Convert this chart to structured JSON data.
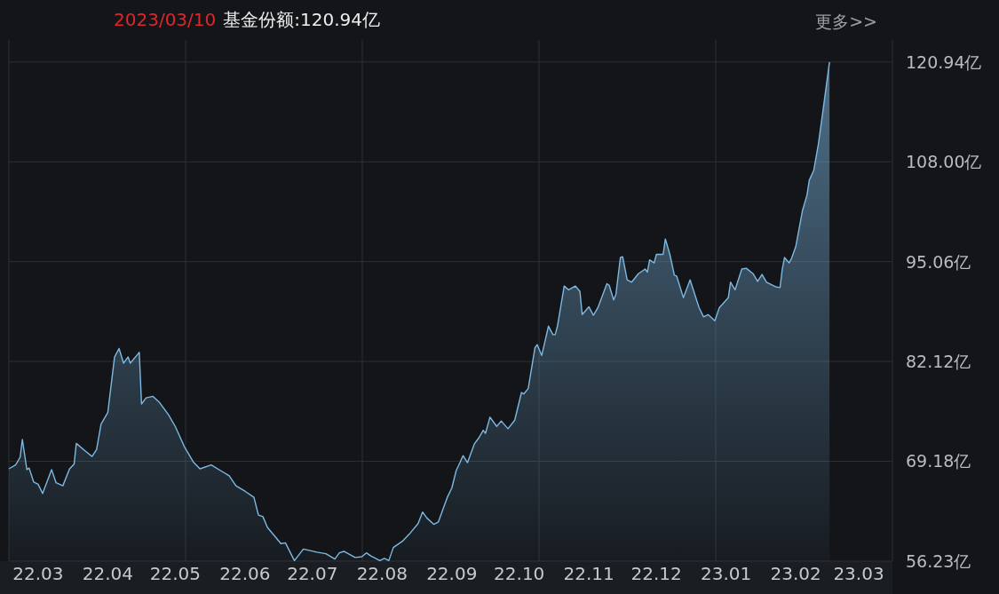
{
  "chart_data": {
    "type": "area",
    "title": "2023/03/10",
    "subtitle": "基金份额:120.94亿",
    "annotations": [
      "更多>>"
    ],
    "xlim": [
      "2022-03-10",
      "2023-04-07"
    ],
    "ylim": [
      56.23,
      123.8
    ],
    "xticks": [
      {
        "value": "2022-03-23",
        "label": "22.03"
      },
      {
        "value": "2022-04-23",
        "label": "22.04"
      },
      {
        "value": "2022-05-23",
        "label": "22.05"
      },
      {
        "value": "2022-06-23",
        "label": "22.06"
      },
      {
        "value": "2022-07-23",
        "label": "22.07"
      },
      {
        "value": "2022-08-23",
        "label": "22.08"
      },
      {
        "value": "2022-09-23",
        "label": "22.09"
      },
      {
        "value": "2022-10-23",
        "label": "22.10"
      },
      {
        "value": "2022-11-23",
        "label": "22.11"
      },
      {
        "value": "2022-12-23",
        "label": "22.12"
      },
      {
        "value": "2023-01-23",
        "label": "23.01"
      },
      {
        "value": "2023-02-23",
        "label": "23.02"
      },
      {
        "value": "2023-03-23",
        "label": "23.03"
      }
    ],
    "yticks": [
      {
        "value": 56.23,
        "label": "56.23亿"
      },
      {
        "value": 69.18,
        "label": "69.18亿"
      },
      {
        "value": 82.12,
        "label": "82.12亿"
      },
      {
        "value": 95.06,
        "label": "95.06亿"
      },
      {
        "value": 108.0,
        "label": "108.00亿"
      },
      {
        "value": 120.94,
        "label": "120.94亿"
      }
    ],
    "grid": true,
    "x": [
      "2022-03-10",
      "2022-03-13",
      "2022-03-15",
      "2022-03-16",
      "2022-03-18",
      "2022-03-19",
      "2022-03-21",
      "2022-03-23",
      "2022-03-25",
      "2022-03-29",
      "2022-03-31",
      "2022-04-03",
      "2022-04-06",
      "2022-04-08",
      "2022-04-09",
      "2022-04-13",
      "2022-04-16",
      "2022-04-18",
      "2022-04-20",
      "2022-04-23",
      "2022-04-26",
      "2022-04-28",
      "2022-04-30",
      "2022-05-02",
      "2022-05-03",
      "2022-05-07",
      "2022-05-08",
      "2022-05-10",
      "2022-05-13",
      "2022-05-16",
      "2022-05-20",
      "2022-05-23",
      "2022-05-27",
      "2022-05-31",
      "2022-06-03",
      "2022-06-08",
      "2022-06-12",
      "2022-06-16",
      "2022-06-19",
      "2022-06-23",
      "2022-06-27",
      "2022-06-29",
      "2022-07-01",
      "2022-07-03",
      "2022-07-09",
      "2022-07-11",
      "2022-07-15",
      "2022-07-19",
      "2022-07-25",
      "2022-07-29",
      "2022-08-02",
      "2022-08-04",
      "2022-08-06",
      "2022-08-11",
      "2022-08-14",
      "2022-08-16",
      "2022-08-18",
      "2022-08-22",
      "2022-08-24",
      "2022-08-26",
      "2022-08-28",
      "2022-09-01",
      "2022-09-04",
      "2022-09-08",
      "2022-09-10",
      "2022-09-12",
      "2022-09-15",
      "2022-09-17",
      "2022-09-21",
      "2022-09-23",
      "2022-09-25",
      "2022-09-26",
      "2022-09-28",
      "2022-09-30",
      "2022-10-03",
      "2022-10-05",
      "2022-10-07",
      "2022-10-08",
      "2022-10-10",
      "2022-10-13",
      "2022-10-15",
      "2022-10-18",
      "2022-10-21",
      "2022-10-24",
      "2022-10-25",
      "2022-10-27",
      "2022-10-30",
      "2022-10-31",
      "2022-11-02",
      "2022-11-05",
      "2022-11-07",
      "2022-11-08",
      "2022-11-09",
      "2022-11-12",
      "2022-11-14",
      "2022-11-17",
      "2022-11-19",
      "2022-11-20",
      "2022-11-23",
      "2022-11-25",
      "2022-11-27",
      "2022-12-01",
      "2022-12-02",
      "2022-12-04",
      "2022-12-05",
      "2022-12-07",
      "2022-12-08",
      "2022-12-10",
      "2022-12-12",
      "2022-12-15",
      "2022-12-18",
      "2022-12-19",
      "2022-12-20",
      "2022-12-22",
      "2022-12-23",
      "2022-12-26",
      "2022-12-27",
      "2022-12-29",
      "2022-12-31",
      "2023-01-01",
      "2023-01-04",
      "2023-01-07",
      "2023-01-11",
      "2023-01-13",
      "2023-01-15",
      "2023-01-18",
      "2023-01-20",
      "2023-01-24",
      "2023-01-25",
      "2023-01-27",
      "2023-01-30",
      "2023-02-01",
      "2023-02-04",
      "2023-02-06",
      "2023-02-08",
      "2023-02-10",
      "2023-02-14",
      "2023-02-16",
      "2023-02-17",
      "2023-02-18",
      "2023-02-20",
      "2023-02-21",
      "2023-02-23",
      "2023-02-26",
      "2023-02-28",
      "2023-03-01",
      "2023-03-03",
      "2023-03-05",
      "2023-03-07",
      "2023-03-10"
    ],
    "series": [
      {
        "color": "#7db9e3",
        "values": [
          68.2,
          68.7,
          69.7,
          72.0,
          68.1,
          68.3,
          66.5,
          66.2,
          65.0,
          68.1,
          66.4,
          66.0,
          68.2,
          68.8,
          71.5,
          70.5,
          69.8,
          70.7,
          74.0,
          75.5,
          82.7,
          83.8,
          81.9,
          82.7,
          81.9,
          83.3,
          76.6,
          77.4,
          77.6,
          76.8,
          75.2,
          73.7,
          71.1,
          69.1,
          68.2,
          68.7,
          68.0,
          67.3,
          66.0,
          65.3,
          64.5,
          62.2,
          62.0,
          60.6,
          58.5,
          58.6,
          56.3,
          57.8,
          57.4,
          57.2,
          56.5,
          57.3,
          57.5,
          56.7,
          56.8,
          57.3,
          56.9,
          56.3,
          56.6,
          56.3,
          58.0,
          58.8,
          59.7,
          61.1,
          62.6,
          61.8,
          61.0,
          61.3,
          64.5,
          65.7,
          68.0,
          68.6,
          69.9,
          69.0,
          71.4,
          72.2,
          73.2,
          72.8,
          74.9,
          73.7,
          74.4,
          73.4,
          74.5,
          78.1,
          77.9,
          78.6,
          83.9,
          84.3,
          82.9,
          86.7,
          85.6,
          85.6,
          86.7,
          91.9,
          91.4,
          91.9,
          91.2,
          88.2,
          89.2,
          88.1,
          89.1,
          92.2,
          92.0,
          90.1,
          90.8,
          95.6,
          95.7,
          92.7,
          92.4,
          93.5,
          94.1,
          93.7,
          95.3,
          94.9,
          96.0,
          96.0,
          98.0,
          96.0,
          93.3,
          93.2,
          90.4,
          92.7,
          89.1,
          87.9,
          88.2,
          87.4,
          89.1,
          90.4,
          92.4,
          91.4,
          94.1,
          94.2,
          93.5,
          92.5,
          93.4,
          92.4,
          91.8,
          91.7,
          94.1,
          95.6,
          94.9,
          95.4,
          97.0,
          101.7,
          103.7,
          105.6,
          106.9,
          110.2,
          114.4,
          120.94
        ]
      }
    ]
  }
}
